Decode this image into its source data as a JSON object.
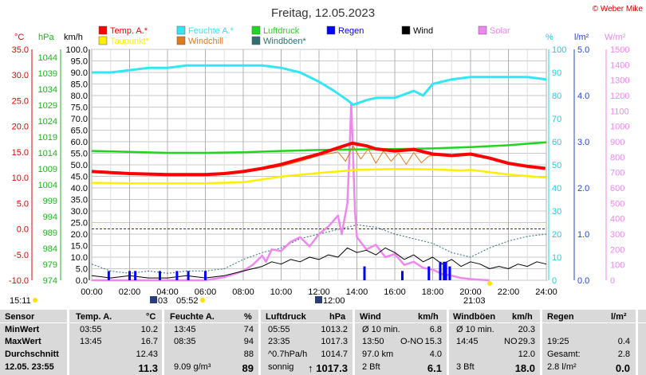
{
  "header": {
    "title": "Freitag, 12.05.2023",
    "credit": "© Weber Mike"
  },
  "legend": [
    {
      "label": "Temp. A.*",
      "color": "#ff0000"
    },
    {
      "label": "Feuchte A.*",
      "color": "#33e6f5"
    },
    {
      "label": "Luftdruck",
      "color": "#1fd51f"
    },
    {
      "label": "Regen",
      "color": "#0000ff"
    },
    {
      "label": "Wind",
      "color": "#000000"
    },
    {
      "label": "Solar",
      "color": "#ee88ee"
    },
    {
      "label": "Taupunkt*",
      "color": "#ffee00"
    },
    {
      "label": "Windchill",
      "color": "#e07a1a"
    },
    {
      "label": "Windböen*",
      "color": "#2f6f6f"
    }
  ],
  "axis_units": {
    "temp": "°C",
    "press": "hPa",
    "wind": "km/h",
    "hum": "%",
    "rain": "l/m²",
    "solar": "W/m²"
  },
  "chart_data": {
    "type": "line",
    "title": "Freitag, 12.05.2023",
    "x_ticks": [
      "00:00",
      "02:00",
      "04:00",
      "06:00",
      "08:00",
      "10:00",
      "12:00",
      "14:00",
      "16:00",
      "18:00",
      "20:00",
      "22:00",
      "24:00"
    ],
    "x_unit": "hours",
    "axes": {
      "temp_c": {
        "min": -10,
        "max": 35,
        "ticks": [
          "35.0",
          "30.0",
          "25.0",
          "20.0",
          "15.0",
          "10.0",
          "5.0",
          "0.0",
          "-5.0",
          "-10.0"
        ]
      },
      "pressure_hpa": {
        "min": 974,
        "max": 1046.5,
        "ticks": [
          "1044",
          "1039",
          "1034",
          "1029",
          "1024",
          "1019",
          "1014",
          "1009",
          "1004",
          "999",
          "994",
          "989",
          "984",
          "979",
          "974"
        ]
      },
      "wind_kmh": {
        "min": 0,
        "max": 100,
        "ticks": [
          "100.0",
          "95.0",
          "90.0",
          "85.0",
          "80.0",
          "75.0",
          "70.0",
          "65.0",
          "60.0",
          "55.0",
          "50.0",
          "45.0",
          "40.0",
          "35.0",
          "30.0",
          "25.0",
          "20.0",
          "15.0",
          "10.0",
          "5.0",
          "0.0"
        ]
      },
      "humidity_pct": {
        "min": 0,
        "max": 100,
        "ticks": [
          "100",
          "90",
          "80",
          "70",
          "60",
          "50",
          "40",
          "30",
          "20",
          "10",
          "0"
        ]
      },
      "rain_lm2": {
        "min": 0,
        "max": 5,
        "ticks": [
          "5.0",
          "4.0",
          "3.0",
          "2.0",
          "1.0",
          "0.0"
        ]
      },
      "solar_wm2": {
        "min": 0,
        "max": 1500,
        "ticks": [
          "1500",
          "1400",
          "1300",
          "1200",
          "1100",
          "1000",
          "900",
          "800",
          "700",
          "600",
          "500",
          "400",
          "300",
          "200",
          "100",
          "0"
        ]
      }
    },
    "series": [
      {
        "name": "Temp. A.*",
        "axis": "temp_c",
        "color": "#ff0000",
        "x": [
          0,
          1,
          2,
          3,
          4,
          5,
          6,
          7,
          8,
          9,
          10,
          11,
          12,
          13,
          13.75,
          14.5,
          15,
          16,
          17,
          18,
          19,
          20,
          21,
          22,
          23,
          23.95
        ],
        "values": [
          11.2,
          11.0,
          10.8,
          10.7,
          10.6,
          10.6,
          10.6,
          10.8,
          11.2,
          11.8,
          12.6,
          13.6,
          14.6,
          15.8,
          16.7,
          16.2,
          15.6,
          15.2,
          15.5,
          14.6,
          14.3,
          14.6,
          13.8,
          12.8,
          12.2,
          11.8
        ]
      },
      {
        "name": "Feuchte A.*",
        "axis": "humidity_pct",
        "color": "#33e6f5",
        "x": [
          0,
          1,
          2,
          3,
          4,
          5,
          6,
          7,
          8,
          9,
          10,
          11,
          12,
          12.8,
          13.5,
          13.8,
          14.5,
          15,
          16,
          17,
          17.5,
          18,
          19,
          20,
          21,
          22,
          23,
          24
        ],
        "values": [
          90,
          90,
          91,
          92,
          92,
          93,
          93,
          93,
          93,
          93,
          92,
          90,
          86,
          82,
          78,
          76,
          78,
          79,
          79,
          82,
          80,
          85,
          87,
          88,
          88,
          88,
          88,
          87
        ]
      },
      {
        "name": "Luftdruck",
        "axis": "pressure_hpa",
        "color": "#1fd51f",
        "x": [
          0,
          2,
          4,
          6,
          8,
          10,
          12,
          14,
          16,
          18,
          20,
          22,
          24
        ],
        "values": [
          1014.6,
          1014.3,
          1014.0,
          1014.0,
          1014.2,
          1014.6,
          1014.9,
          1015.1,
          1015.2,
          1015.4,
          1015.8,
          1016.4,
          1017.3
        ]
      },
      {
        "name": "Taupunkt*",
        "axis": "temp_c",
        "color": "#ffee00",
        "x": [
          0,
          2,
          4,
          6,
          8,
          10,
          12,
          14,
          16,
          18,
          19.5,
          20,
          22,
          24
        ],
        "values": [
          9.0,
          8.9,
          8.9,
          8.9,
          9.1,
          10.2,
          10.9,
          11.5,
          11.7,
          11.6,
          11.4,
          11.5,
          10.6,
          10.0
        ]
      },
      {
        "name": "Solar",
        "axis": "solar_wm2",
        "color": "#ee88ee",
        "x": [
          0,
          6,
          7,
          7.5,
          8,
          8.5,
          9,
          9.2,
          9.5,
          10,
          10.5,
          11,
          11.5,
          12,
          12.5,
          13,
          13.2,
          13.5,
          13.6,
          13.7,
          13.9,
          14,
          14.5,
          15,
          15.5,
          16,
          16.5,
          17,
          17.5,
          18,
          18.5,
          19,
          19.5,
          20,
          20.5,
          21
        ],
        "values": [
          0,
          0,
          20,
          40,
          60,
          100,
          160,
          120,
          200,
          190,
          250,
          280,
          220,
          300,
          350,
          420,
          300,
          500,
          800,
          1150,
          450,
          280,
          200,
          230,
          150,
          170,
          100,
          120,
          80,
          70,
          40,
          30,
          15,
          8,
          3,
          0
        ]
      },
      {
        "name": "Wind",
        "axis": "wind_kmh",
        "color": "#000000",
        "x": [
          0,
          1,
          2,
          3,
          4,
          5,
          6,
          7,
          8,
          8.5,
          9,
          9.5,
          10,
          10.5,
          11,
          11.5,
          12,
          12.5,
          13,
          13.5,
          14,
          14.5,
          15,
          15.5,
          16,
          16.5,
          17,
          17.5,
          18,
          18.5,
          19,
          19.5,
          20,
          20.5,
          21,
          21.5,
          22,
          22.5,
          23,
          23.5,
          24
        ],
        "values": [
          2,
          1,
          2,
          1,
          1,
          2,
          1,
          2,
          4,
          5,
          6,
          8,
          7,
          9,
          8,
          10,
          9,
          11,
          10,
          14,
          12,
          13,
          11,
          14,
          12,
          9,
          11,
          8,
          10,
          7,
          9,
          6,
          8,
          7,
          5,
          6,
          5,
          7,
          6,
          8,
          7
        ]
      },
      {
        "name": "Windchill",
        "axis": "temp_c",
        "color": "#e07a1a",
        "x": [
          8,
          9,
          10,
          11,
          12,
          13,
          13.4,
          13.8,
          14.2,
          14.6,
          15,
          15.4,
          15.8,
          16.2,
          16.6,
          17,
          17.4,
          17.8,
          18.2
        ],
        "values": [
          11.0,
          11.6,
          12.2,
          13.2,
          14.3,
          15.0,
          13.2,
          16.2,
          13.6,
          15.6,
          12.8,
          15.2,
          13.2,
          14.8,
          12.6,
          14.9,
          12.9,
          14.2,
          14.3
        ]
      },
      {
        "name": "Windböen*",
        "axis": "wind_kmh",
        "color": "#2f6f6f",
        "x": [
          0,
          1,
          2,
          3,
          4,
          5,
          6,
          7,
          8,
          9,
          10,
          11,
          12,
          13,
          14,
          15,
          16,
          17,
          18,
          19,
          20,
          21,
          22,
          23,
          24
        ],
        "values": [
          7,
          4,
          3,
          4,
          3,
          4,
          4,
          5,
          9,
          12,
          14,
          18,
          20,
          22,
          24,
          23,
          20,
          18,
          16,
          12,
          10,
          14,
          17,
          19,
          20
        ]
      }
    ],
    "rain_events": {
      "axis": "rain_lm2",
      "x": [
        0.9,
        2.0,
        2.3,
        3.6,
        4.5,
        5.1,
        6.0,
        14.4,
        16.4,
        17.8,
        18.4,
        18.6,
        18.7,
        18.9
      ],
      "values": [
        0.2,
        0.2,
        0.2,
        0.2,
        0.2,
        0.2,
        0.2,
        0.3,
        0.2,
        0.3,
        0.4,
        0.4,
        0.4,
        0.3
      ]
    },
    "grid": true
  },
  "astro": {
    "clock_left": "15:11",
    "sunrise": "05:52",
    "moonrise": "03",
    "noon": "12:00",
    "sunset": "21:03"
  },
  "stats": {
    "headers": {
      "sensor": "Sensor",
      "temp": "Temp. A.",
      "temp_u": "°C",
      "hum": "Feuchte A.",
      "hum_u": "%",
      "press": "Luftdruck",
      "press_u": "hPa",
      "wind": "Wind",
      "wind_u": "km/h",
      "gust": "Windböen",
      "gust_u": "km/h",
      "rain": "Regen",
      "rain_u": "l/m²"
    },
    "rows": [
      {
        "label": "MinWert",
        "t_time": "03:55",
        "t_val": "10.2",
        "h_time": "13:45",
        "h_val": "74",
        "p_time": "05:55",
        "p_val": "1013.2",
        "w_l": "Ø 10 min.",
        "w_val": "6.8",
        "g_l": "Ø 10 min.",
        "g_val": "20.3",
        "r_l": "",
        "r_val": ""
      },
      {
        "label": "MaxWert",
        "t_time": "13:45",
        "t_val": "16.7",
        "h_time": "08:35",
        "h_val": "94",
        "p_time": "23:35",
        "p_val": "1017.3",
        "w_l": "13:50",
        "w_mid": "O-NO",
        "w_val": "15.3",
        "g_l": "14:45",
        "g_mid": "NO",
        "g_val": "29.3",
        "r_l": "19:25",
        "r_val": "0.4"
      },
      {
        "label": "Durchschnitt",
        "t_time": "",
        "t_val": "12.43",
        "h_time": "",
        "h_val": "88",
        "p_time": "^0.7hPa/h",
        "p_val": "1014.7",
        "w_l": "97.0 km",
        "w_val": "4.0",
        "g_l": "",
        "g_val": "12.0",
        "r_l": "Gesamt:",
        "r_val": "2.8"
      },
      {
        "label": "12.05. 23:55",
        "t_time": "",
        "t_val": "11.3",
        "h_time": "9.09 g/m³",
        "h_val": "89",
        "p_time": "sonnig",
        "p_arrow": "↑",
        "p_val": "1017.3",
        "w_l": "2 Bft",
        "w_val": "6.1",
        "g_l": "3 Bft",
        "g_val": "18.0",
        "r_l": "2.8 l/m²",
        "r_val": "0.0"
      }
    ]
  }
}
